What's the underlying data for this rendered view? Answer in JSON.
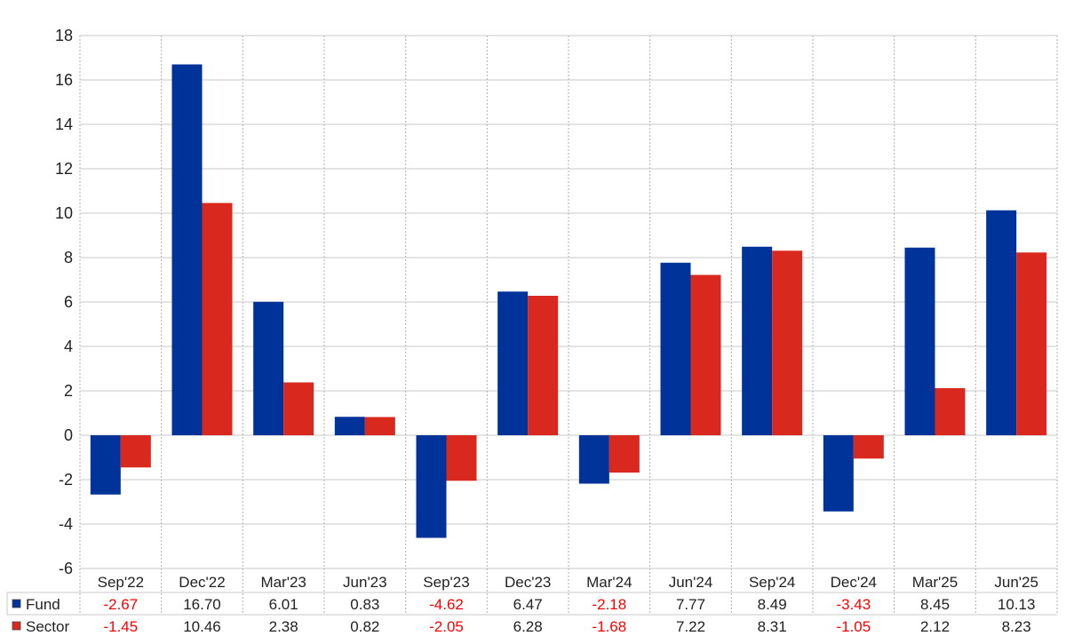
{
  "chart_data": {
    "type": "bar",
    "categories": [
      "Sep'22",
      "Dec'22",
      "Mar'23",
      "Jun'23",
      "Sep'23",
      "Dec'23",
      "Mar'24",
      "Jun'24",
      "Sep'24",
      "Dec'24",
      "Mar'25",
      "Jun'25"
    ],
    "series": [
      {
        "name": "Fund",
        "color": "#003399",
        "values": [
          -2.67,
          16.7,
          6.01,
          0.83,
          -4.62,
          6.47,
          -2.18,
          7.77,
          8.49,
          -3.43,
          8.45,
          10.13
        ],
        "labels": [
          "-2.67",
          "16.70",
          "6.01",
          "0.83",
          "-4.62",
          "6.47",
          "-2.18",
          "7.77",
          "8.49",
          "-3.43",
          "8.45",
          "10.13"
        ]
      },
      {
        "name": "Sector",
        "color": "#d9281e",
        "values": [
          -1.45,
          10.46,
          2.38,
          0.82,
          -2.05,
          6.28,
          -1.68,
          7.22,
          8.31,
          -1.05,
          2.12,
          8.23
        ],
        "labels": [
          "-1.45",
          "10.46",
          "2.38",
          "0.82",
          "-2.05",
          "6.28",
          "-1.68",
          "7.22",
          "8.31",
          "-1.05",
          "2.12",
          "8.23"
        ]
      }
    ],
    "ylim": [
      -6,
      18
    ],
    "yticks": [
      "-6",
      "-4",
      "-2",
      "0",
      "2",
      "4",
      "6",
      "8",
      "10",
      "12",
      "14",
      "16",
      "18"
    ],
    "grid": true,
    "legend": "data-table-left",
    "negative_value_color": "#ff0000",
    "title": "",
    "xlabel": "",
    "ylabel": ""
  }
}
